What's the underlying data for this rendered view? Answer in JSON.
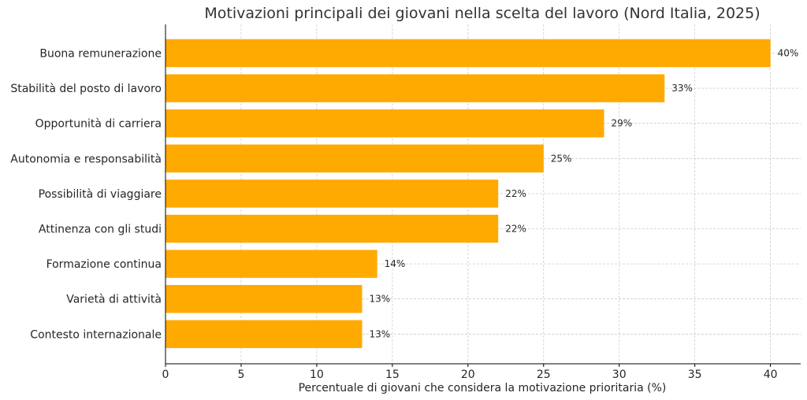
{
  "chart_data": {
    "type": "bar",
    "orientation": "horizontal",
    "title": "Motivazioni principali dei giovani nella scelta del lavoro (Nord Italia, 2025)",
    "xlabel": "Percentuale di giovani che considera la motivazione prioritaria (%)",
    "ylabel": "",
    "categories": [
      "Buona remunerazione",
      "Stabilità del posto di lavoro",
      "Opportunità di carriera",
      "Autonomia e responsabilità",
      "Possibilità di viaggiare",
      "Attinenza con gli studi",
      "Formazione continua",
      "Varietà di attività",
      "Contesto internazionale"
    ],
    "values": [
      40,
      33,
      29,
      25,
      22,
      22,
      14,
      13,
      13
    ],
    "value_labels": [
      "40%",
      "33%",
      "29%",
      "25%",
      "22%",
      "22%",
      "14%",
      "13%",
      "13%"
    ],
    "xlim": [
      0,
      42
    ],
    "xticks": [
      0,
      5,
      10,
      15,
      20,
      25,
      30,
      35,
      40
    ],
    "grid": true,
    "bar_color": "#FFAA00",
    "grid_color": "#cccccc"
  }
}
